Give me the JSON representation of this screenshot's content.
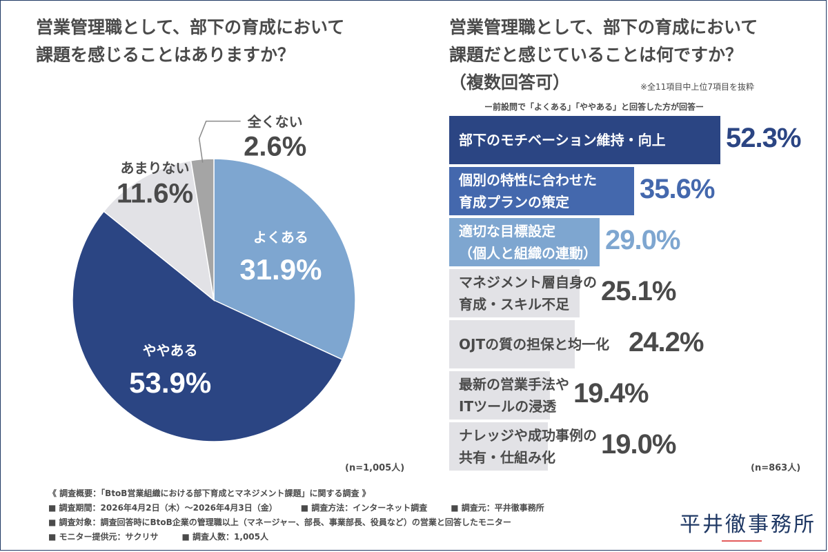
{
  "left": {
    "title_lines": [
      "営業管理職として、部下の育成において",
      "課題を感じることはありますか？"
    ],
    "n_label": "(n=1,005人)"
  },
  "right": {
    "title_lines": [
      "営業管理職として、部下の育成において",
      "課題だと感じていることは何ですか？",
      "（複数回答可）"
    ],
    "note": "※全11項目中上位7項目を抜粋",
    "subnote": "ー前設問で「よくある」「ややある」と回答した方が回答ー",
    "n_label": "(n=863人)"
  },
  "colors": {
    "navy": "#2b4583",
    "mid_blue": "#4468ad",
    "light_blue": "#7ea6d0",
    "gray": "#e2e2e6",
    "dark_gray": "#a5a5a5",
    "text": "#4a4a4a"
  },
  "chart_data": [
    {
      "type": "pie",
      "title": "営業管理職として、部下の育成において課題を感じることはありますか？",
      "slices": [
        {
          "label": "よくある",
          "value": 31.9,
          "value_text": "31.9%",
          "color": "#7ea6d0"
        },
        {
          "label": "ややある",
          "value": 53.9,
          "value_text": "53.9%",
          "color": "#2b4583"
        },
        {
          "label": "あまりない",
          "value": 11.6,
          "value_text": "11.6%",
          "color": "#e2e2e6"
        },
        {
          "label": "全くない",
          "value": 2.6,
          "value_text": "2.6%",
          "color": "#a5a5a5"
        }
      ]
    },
    {
      "type": "bar",
      "orientation": "horizontal",
      "title": "営業管理職として、部下の育成において課題だと感じていることは何ですか？（複数回答可）",
      "xlim": [
        0,
        52.3
      ],
      "bars": [
        {
          "label_lines": [
            "部下のモチベーション維持・向上"
          ],
          "value": 52.3,
          "value_text": "52.3%",
          "color": "#2b4583",
          "label_color": "#ffffff",
          "value_color": "#2b4583"
        },
        {
          "label_lines": [
            "個別の特性に合わせた",
            "育成プランの策定"
          ],
          "value": 35.6,
          "value_text": "35.6%",
          "color": "#4468ad",
          "label_color": "#ffffff",
          "value_color": "#4468ad"
        },
        {
          "label_lines": [
            "適切な目標設定",
            "（個人と組織の連動）"
          ],
          "value": 29.0,
          "value_text": "29.0%",
          "color": "#7ea6d0",
          "label_color": "#ffffff",
          "value_color": "#7ea6d0"
        },
        {
          "label_lines": [
            "マネジメント層自身の",
            "育成・スキル不足"
          ],
          "value": 25.1,
          "value_text": "25.1%",
          "color": "#e2e2e6",
          "label_color": "#4a4a4a",
          "value_color": "#4a4a4a"
        },
        {
          "label_lines": [
            "OJTの質の担保と均一化"
          ],
          "value": 24.2,
          "value_text": "24.2%",
          "color": "#e2e2e6",
          "label_color": "#4a4a4a",
          "value_color": "#4a4a4a"
        },
        {
          "label_lines": [
            "最新の営業手法や",
            "ITツールの浸透"
          ],
          "value": 19.4,
          "value_text": "19.4%",
          "color": "#e2e2e6",
          "label_color": "#4a4a4a",
          "value_color": "#4a4a4a"
        },
        {
          "label_lines": [
            "ナレッジや成功事例の",
            "共有・仕組み化"
          ],
          "value": 19.0,
          "value_text": "19.0%",
          "color": "#e2e2e6",
          "label_color": "#4a4a4a",
          "value_color": "#4a4a4a"
        }
      ]
    }
  ],
  "survey": {
    "heading": "《 調査概要：「BtoB営業組織における部下育成とマネジメント課題」に関する調査 》",
    "period": "■ 調査期間：2026年4月2日（木）～2026年4月3日（金）",
    "method": "■ 調査方法：インターネット調査",
    "source": "■ 調査元：平井徹事務所",
    "target": "■ 調査対象：調査回答時にBtoB企業の管理職以上（マネージャー、部長、事業部長、役員など）の営業と回答したモニター",
    "provider": "■ モニター提供元：サクリサ",
    "count": "■ 調査人数：1,005人"
  },
  "logo": "平井徹事務所"
}
